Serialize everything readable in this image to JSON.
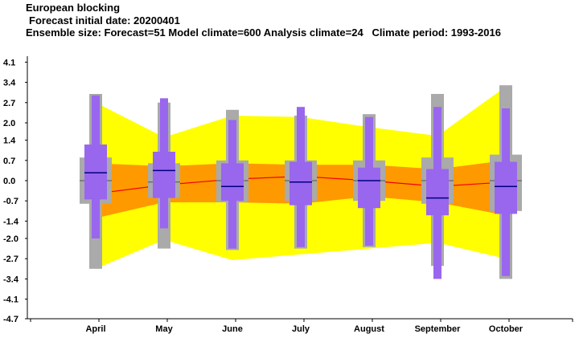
{
  "title": "European blocking",
  "subtitle_1": "Forecast initial date: 20200401",
  "subtitle_2": "Ensemble size: Forecast=51 Model climate=600 Analysis climate=24   Climate period: 1993-2016",
  "colors": {
    "envelope_outer": "#ffff00",
    "envelope_inner": "#ff9900",
    "model_climate_box": "#aaaaaa",
    "forecast_box": "#9966ee",
    "median_line": "#000080",
    "climate_mean_line": "#ee0000",
    "axis": "#000000"
  },
  "chart_data": {
    "type": "box",
    "xlabel": "",
    "ylabel": "",
    "categories": [
      "April",
      "May",
      "June",
      "July",
      "August",
      "September",
      "October"
    ],
    "ylim": [
      -4.7,
      4.7
    ],
    "yticks": [
      4.1,
      3.4,
      2.7,
      2.0,
      1.4,
      0.7,
      0.0,
      -0.7,
      -1.4,
      -2.0,
      -2.7,
      -3.4,
      -4.1,
      -4.7
    ],
    "ytick_labels": [
      "4.1",
      "3.4",
      "2.7",
      "2.0",
      "1.4",
      "0.7",
      "0.0",
      "-0.7",
      "-1.4",
      "-2.0",
      "-2.7",
      "-3.4",
      "-4.1",
      "-4.7"
    ],
    "forecast": [
      {
        "min": -2.0,
        "q1": -0.65,
        "median": 0.27,
        "q3": 1.25,
        "max": 2.95
      },
      {
        "min": -1.65,
        "q1": -0.6,
        "median": 0.35,
        "q3": 1.0,
        "max": 2.85
      },
      {
        "min": -2.35,
        "q1": -0.7,
        "median": -0.2,
        "q3": 0.6,
        "max": 2.1
      },
      {
        "min": -2.3,
        "q1": -0.85,
        "median": -0.05,
        "q3": 0.65,
        "max": 2.55
      },
      {
        "min": -2.25,
        "q1": -0.95,
        "median": 0.0,
        "q3": 0.45,
        "max": 2.2
      },
      {
        "min": -3.4,
        "q1": -1.2,
        "median": -0.6,
        "q3": 0.4,
        "max": 2.55
      },
      {
        "min": -3.3,
        "q1": -1.15,
        "median": -0.2,
        "q3": 0.65,
        "max": 2.5
      }
    ],
    "model_climate": [
      {
        "p01": -3.05,
        "p10": -0.8,
        "median": 0.0,
        "p90": 0.8,
        "p99": 3.0
      },
      {
        "p01": -2.35,
        "p10": -0.6,
        "median": -0.05,
        "p90": 0.6,
        "p99": 2.7
      },
      {
        "p01": -2.4,
        "p10": -0.75,
        "median": 0.0,
        "p90": 0.7,
        "p99": 2.45
      },
      {
        "p01": -2.35,
        "p10": -0.7,
        "median": 0.0,
        "p90": 0.7,
        "p99": 2.25
      },
      {
        "p01": -2.3,
        "p10": -0.7,
        "median": 0.0,
        "p90": 0.7,
        "p99": 2.3
      },
      {
        "p01": -2.95,
        "p10": -0.8,
        "median": 0.0,
        "p90": 0.8,
        "p99": 3.0
      },
      {
        "p01": -3.4,
        "p10": -1.05,
        "median": 0.0,
        "p90": 0.9,
        "p99": 3.3
      }
    ],
    "analysis_climate": {
      "min": [
        -3.05,
        -2.05,
        -2.75,
        -2.55,
        -2.35,
        -2.15,
        -2.7
      ],
      "q1": [
        -1.3,
        -0.75,
        -0.75,
        -0.8,
        -0.55,
        -0.75,
        -1.2
      ],
      "mean": [
        -0.45,
        -0.15,
        0.05,
        0.15,
        0.0,
        -0.2,
        -0.05
      ],
      "q3": [
        0.6,
        0.5,
        0.6,
        0.55,
        0.55,
        0.4,
        0.7
      ],
      "max": [
        2.7,
        1.5,
        2.25,
        2.2,
        1.85,
        1.55,
        3.25
      ]
    }
  }
}
